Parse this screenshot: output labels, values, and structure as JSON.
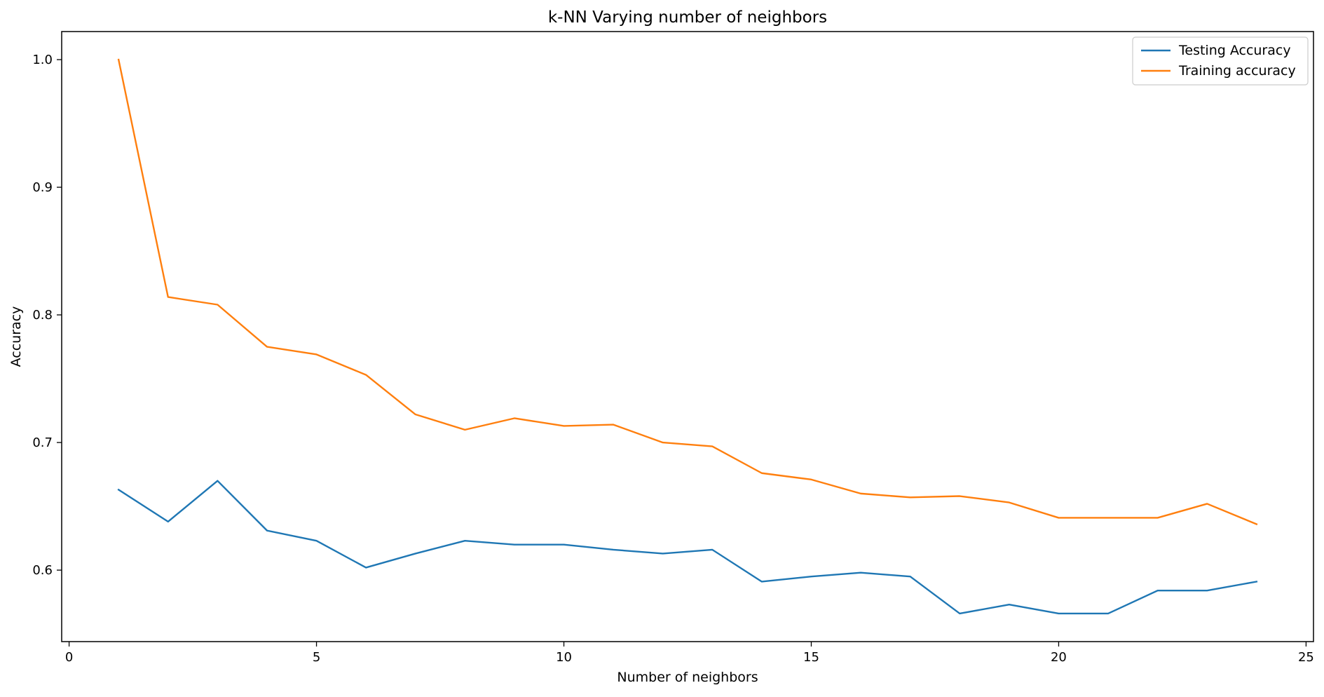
{
  "chart_data": {
    "type": "line",
    "title": "k-NN Varying number of neighbors",
    "xlabel": "Number of neighbors",
    "ylabel": "Accuracy",
    "xlim": [
      -0.15,
      25.15
    ],
    "ylim": [
      0.544,
      1.022
    ],
    "xticks": [
      0,
      5,
      10,
      15,
      20,
      25
    ],
    "yticks": [
      0.6,
      0.7,
      0.8,
      0.9,
      1.0
    ],
    "xtick_labels": [
      "0",
      "5",
      "10",
      "15",
      "20",
      "25"
    ],
    "ytick_labels": [
      "0.6",
      "0.7",
      "0.8",
      "0.9",
      "1.0"
    ],
    "grid": false,
    "legend_position": "top-right",
    "x": [
      1,
      2,
      3,
      4,
      5,
      6,
      7,
      8,
      9,
      10,
      11,
      12,
      13,
      14,
      15,
      16,
      17,
      18,
      19,
      20,
      21,
      22,
      23,
      24
    ],
    "series": [
      {
        "name": "Testing Accuracy",
        "color": "#1f77b4",
        "values": [
          0.663,
          0.638,
          0.67,
          0.631,
          0.623,
          0.602,
          0.613,
          0.623,
          0.62,
          0.62,
          0.616,
          0.613,
          0.616,
          0.591,
          0.595,
          0.598,
          0.595,
          0.566,
          0.573,
          0.566,
          0.566,
          0.584,
          0.584,
          0.591
        ]
      },
      {
        "name": "Training accuracy",
        "color": "#ff7f0e",
        "values": [
          1.0,
          0.814,
          0.808,
          0.775,
          0.769,
          0.753,
          0.722,
          0.71,
          0.719,
          0.713,
          0.714,
          0.7,
          0.697,
          0.676,
          0.671,
          0.66,
          0.657,
          0.658,
          0.653,
          0.641,
          0.641,
          0.641,
          0.652,
          0.636
        ]
      }
    ]
  }
}
